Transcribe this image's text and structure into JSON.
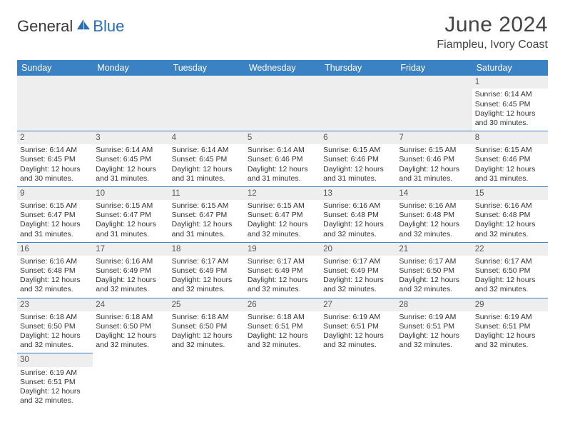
{
  "brand": {
    "general": "General",
    "blue": "Blue"
  },
  "title": "June 2024",
  "location": "Fiampleu, Ivory Coast",
  "colors": {
    "header_bg": "#3b82c4",
    "header_text": "#ffffff",
    "daynum_bg": "#eeeeee",
    "border": "#3b82c4",
    "logo_blue": "#2a6db8",
    "text": "#333333"
  },
  "weekdays": [
    "Sunday",
    "Monday",
    "Tuesday",
    "Wednesday",
    "Thursday",
    "Friday",
    "Saturday"
  ],
  "weeks": [
    [
      null,
      null,
      null,
      null,
      null,
      null,
      {
        "n": "1",
        "sr": "Sunrise: 6:14 AM",
        "ss": "Sunset: 6:45 PM",
        "d1": "Daylight: 12 hours",
        "d2": "and 30 minutes."
      }
    ],
    [
      {
        "n": "2",
        "sr": "Sunrise: 6:14 AM",
        "ss": "Sunset: 6:45 PM",
        "d1": "Daylight: 12 hours",
        "d2": "and 30 minutes."
      },
      {
        "n": "3",
        "sr": "Sunrise: 6:14 AM",
        "ss": "Sunset: 6:45 PM",
        "d1": "Daylight: 12 hours",
        "d2": "and 31 minutes."
      },
      {
        "n": "4",
        "sr": "Sunrise: 6:14 AM",
        "ss": "Sunset: 6:45 PM",
        "d1": "Daylight: 12 hours",
        "d2": "and 31 minutes."
      },
      {
        "n": "5",
        "sr": "Sunrise: 6:14 AM",
        "ss": "Sunset: 6:46 PM",
        "d1": "Daylight: 12 hours",
        "d2": "and 31 minutes."
      },
      {
        "n": "6",
        "sr": "Sunrise: 6:15 AM",
        "ss": "Sunset: 6:46 PM",
        "d1": "Daylight: 12 hours",
        "d2": "and 31 minutes."
      },
      {
        "n": "7",
        "sr": "Sunrise: 6:15 AM",
        "ss": "Sunset: 6:46 PM",
        "d1": "Daylight: 12 hours",
        "d2": "and 31 minutes."
      },
      {
        "n": "8",
        "sr": "Sunrise: 6:15 AM",
        "ss": "Sunset: 6:46 PM",
        "d1": "Daylight: 12 hours",
        "d2": "and 31 minutes."
      }
    ],
    [
      {
        "n": "9",
        "sr": "Sunrise: 6:15 AM",
        "ss": "Sunset: 6:47 PM",
        "d1": "Daylight: 12 hours",
        "d2": "and 31 minutes."
      },
      {
        "n": "10",
        "sr": "Sunrise: 6:15 AM",
        "ss": "Sunset: 6:47 PM",
        "d1": "Daylight: 12 hours",
        "d2": "and 31 minutes."
      },
      {
        "n": "11",
        "sr": "Sunrise: 6:15 AM",
        "ss": "Sunset: 6:47 PM",
        "d1": "Daylight: 12 hours",
        "d2": "and 31 minutes."
      },
      {
        "n": "12",
        "sr": "Sunrise: 6:15 AM",
        "ss": "Sunset: 6:47 PM",
        "d1": "Daylight: 12 hours",
        "d2": "and 32 minutes."
      },
      {
        "n": "13",
        "sr": "Sunrise: 6:16 AM",
        "ss": "Sunset: 6:48 PM",
        "d1": "Daylight: 12 hours",
        "d2": "and 32 minutes."
      },
      {
        "n": "14",
        "sr": "Sunrise: 6:16 AM",
        "ss": "Sunset: 6:48 PM",
        "d1": "Daylight: 12 hours",
        "d2": "and 32 minutes."
      },
      {
        "n": "15",
        "sr": "Sunrise: 6:16 AM",
        "ss": "Sunset: 6:48 PM",
        "d1": "Daylight: 12 hours",
        "d2": "and 32 minutes."
      }
    ],
    [
      {
        "n": "16",
        "sr": "Sunrise: 6:16 AM",
        "ss": "Sunset: 6:48 PM",
        "d1": "Daylight: 12 hours",
        "d2": "and 32 minutes."
      },
      {
        "n": "17",
        "sr": "Sunrise: 6:16 AM",
        "ss": "Sunset: 6:49 PM",
        "d1": "Daylight: 12 hours",
        "d2": "and 32 minutes."
      },
      {
        "n": "18",
        "sr": "Sunrise: 6:17 AM",
        "ss": "Sunset: 6:49 PM",
        "d1": "Daylight: 12 hours",
        "d2": "and 32 minutes."
      },
      {
        "n": "19",
        "sr": "Sunrise: 6:17 AM",
        "ss": "Sunset: 6:49 PM",
        "d1": "Daylight: 12 hours",
        "d2": "and 32 minutes."
      },
      {
        "n": "20",
        "sr": "Sunrise: 6:17 AM",
        "ss": "Sunset: 6:49 PM",
        "d1": "Daylight: 12 hours",
        "d2": "and 32 minutes."
      },
      {
        "n": "21",
        "sr": "Sunrise: 6:17 AM",
        "ss": "Sunset: 6:50 PM",
        "d1": "Daylight: 12 hours",
        "d2": "and 32 minutes."
      },
      {
        "n": "22",
        "sr": "Sunrise: 6:17 AM",
        "ss": "Sunset: 6:50 PM",
        "d1": "Daylight: 12 hours",
        "d2": "and 32 minutes."
      }
    ],
    [
      {
        "n": "23",
        "sr": "Sunrise: 6:18 AM",
        "ss": "Sunset: 6:50 PM",
        "d1": "Daylight: 12 hours",
        "d2": "and 32 minutes."
      },
      {
        "n": "24",
        "sr": "Sunrise: 6:18 AM",
        "ss": "Sunset: 6:50 PM",
        "d1": "Daylight: 12 hours",
        "d2": "and 32 minutes."
      },
      {
        "n": "25",
        "sr": "Sunrise: 6:18 AM",
        "ss": "Sunset: 6:50 PM",
        "d1": "Daylight: 12 hours",
        "d2": "and 32 minutes."
      },
      {
        "n": "26",
        "sr": "Sunrise: 6:18 AM",
        "ss": "Sunset: 6:51 PM",
        "d1": "Daylight: 12 hours",
        "d2": "and 32 minutes."
      },
      {
        "n": "27",
        "sr": "Sunrise: 6:19 AM",
        "ss": "Sunset: 6:51 PM",
        "d1": "Daylight: 12 hours",
        "d2": "and 32 minutes."
      },
      {
        "n": "28",
        "sr": "Sunrise: 6:19 AM",
        "ss": "Sunset: 6:51 PM",
        "d1": "Daylight: 12 hours",
        "d2": "and 32 minutes."
      },
      {
        "n": "29",
        "sr": "Sunrise: 6:19 AM",
        "ss": "Sunset: 6:51 PM",
        "d1": "Daylight: 12 hours",
        "d2": "and 32 minutes."
      }
    ],
    [
      {
        "n": "30",
        "sr": "Sunrise: 6:19 AM",
        "ss": "Sunset: 6:51 PM",
        "d1": "Daylight: 12 hours",
        "d2": "and 32 minutes."
      },
      null,
      null,
      null,
      null,
      null,
      null
    ]
  ]
}
